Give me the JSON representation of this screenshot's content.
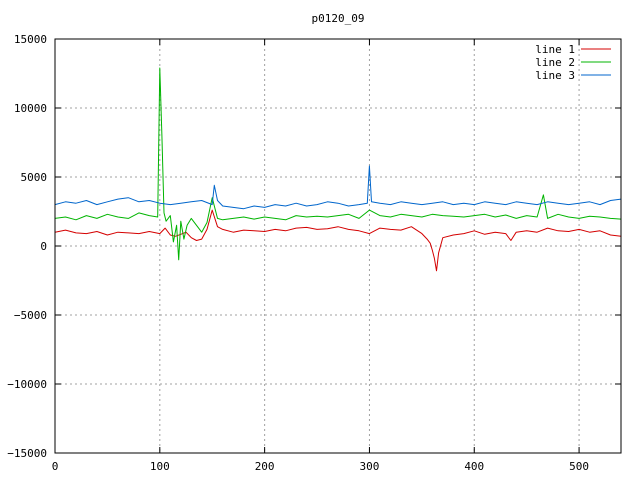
{
  "chart_data": {
    "type": "line",
    "title": "p0120_09",
    "xlabel": "",
    "ylabel": "",
    "xlim": [
      0,
      540
    ],
    "ylim": [
      -15000,
      15000
    ],
    "xticks": [
      0,
      100,
      200,
      300,
      400,
      500
    ],
    "yticks": [
      -15000,
      -10000,
      -5000,
      0,
      5000,
      10000,
      15000
    ],
    "xtick_labels": [
      "0",
      "100",
      "200",
      "300",
      "400",
      "500"
    ],
    "ytick_labels": [
      "−15000",
      "−10000",
      "−5000",
      "0",
      "5000",
      "10000",
      "15000"
    ],
    "grid": true,
    "legend_position": "top-right",
    "series": [
      {
        "name": "line 1",
        "color": "#d40000",
        "x": [
          0,
          10,
          20,
          30,
          40,
          50,
          60,
          70,
          80,
          90,
          100,
          105,
          110,
          115,
          120,
          125,
          130,
          135,
          140,
          145,
          150,
          155,
          160,
          170,
          180,
          190,
          200,
          210,
          220,
          230,
          240,
          250,
          260,
          270,
          280,
          290,
          300,
          310,
          320,
          330,
          340,
          350,
          355,
          358,
          360,
          362,
          364,
          366,
          370,
          380,
          390,
          400,
          410,
          420,
          430,
          435,
          440,
          450,
          460,
          470,
          480,
          490,
          500,
          510,
          520,
          530,
          540
        ],
        "values": [
          1000,
          1150,
          950,
          900,
          1050,
          800,
          1000,
          950,
          900,
          1050,
          900,
          1300,
          800,
          700,
          850,
          1000,
          600,
          400,
          500,
          1200,
          2600,
          1400,
          1200,
          1000,
          1150,
          1100,
          1050,
          1200,
          1100,
          1300,
          1350,
          1200,
          1250,
          1400,
          1200,
          1100,
          900,
          1300,
          1200,
          1150,
          1400,
          900,
          500,
          200,
          -300,
          -900,
          -1800,
          -500,
          600,
          800,
          900,
          1100,
          850,
          1000,
          900,
          400,
          1000,
          1100,
          1000,
          1300,
          1100,
          1050,
          1200,
          1000,
          1100,
          800,
          700
        ]
      },
      {
        "name": "line 2",
        "color": "#00b400",
        "x": [
          0,
          10,
          20,
          30,
          40,
          50,
          60,
          70,
          80,
          90,
          98,
          100,
          102,
          104,
          106,
          110,
          113,
          116,
          118,
          120,
          123,
          126,
          130,
          135,
          140,
          145,
          150,
          155,
          160,
          170,
          180,
          190,
          200,
          210,
          220,
          230,
          240,
          250,
          260,
          270,
          280,
          290,
          300,
          310,
          320,
          330,
          340,
          350,
          360,
          370,
          380,
          390,
          400,
          410,
          420,
          430,
          440,
          450,
          460,
          466,
          470,
          480,
          490,
          500,
          510,
          520,
          530,
          540
        ],
        "values": [
          2000,
          2100,
          1900,
          2200,
          2000,
          2300,
          2100,
          2000,
          2400,
          2200,
          2100,
          12900,
          8000,
          2400,
          1800,
          2200,
          300,
          1500,
          -1000,
          1800,
          500,
          1500,
          2000,
          1500,
          1000,
          1700,
          3500,
          2000,
          1900,
          2000,
          2100,
          1950,
          2100,
          2000,
          1900,
          2200,
          2100,
          2150,
          2100,
          2200,
          2300,
          2000,
          2600,
          2200,
          2100,
          2300,
          2200,
          2100,
          2300,
          2200,
          2150,
          2100,
          2200,
          2300,
          2100,
          2250,
          2000,
          2200,
          2100,
          3700,
          2000,
          2300,
          2100,
          2000,
          2150,
          2100,
          2000,
          1950
        ]
      },
      {
        "name": "line 3",
        "color": "#0066cc",
        "x": [
          0,
          10,
          20,
          30,
          40,
          50,
          60,
          70,
          80,
          90,
          100,
          110,
          120,
          130,
          140,
          150,
          152,
          155,
          160,
          170,
          180,
          190,
          200,
          210,
          220,
          230,
          240,
          250,
          260,
          270,
          280,
          290,
          298,
          300,
          302,
          310,
          320,
          330,
          340,
          350,
          360,
          370,
          380,
          390,
          400,
          410,
          420,
          430,
          440,
          450,
          460,
          470,
          480,
          490,
          500,
          510,
          520,
          530,
          540
        ],
        "values": [
          3000,
          3200,
          3100,
          3300,
          3000,
          3200,
          3400,
          3500,
          3200,
          3300,
          3100,
          3000,
          3100,
          3200,
          3300,
          3000,
          4400,
          3300,
          2900,
          2800,
          2700,
          2900,
          2800,
          3000,
          2900,
          3100,
          2900,
          3000,
          3200,
          3100,
          2900,
          3000,
          3100,
          5800,
          3200,
          3100,
          3000,
          3200,
          3100,
          3000,
          3100,
          3200,
          3000,
          3100,
          3000,
          3200,
          3100,
          3000,
          3200,
          3100,
          3000,
          3200,
          3100,
          3000,
          3100,
          3200,
          3000,
          3300,
          3400
        ]
      }
    ]
  }
}
